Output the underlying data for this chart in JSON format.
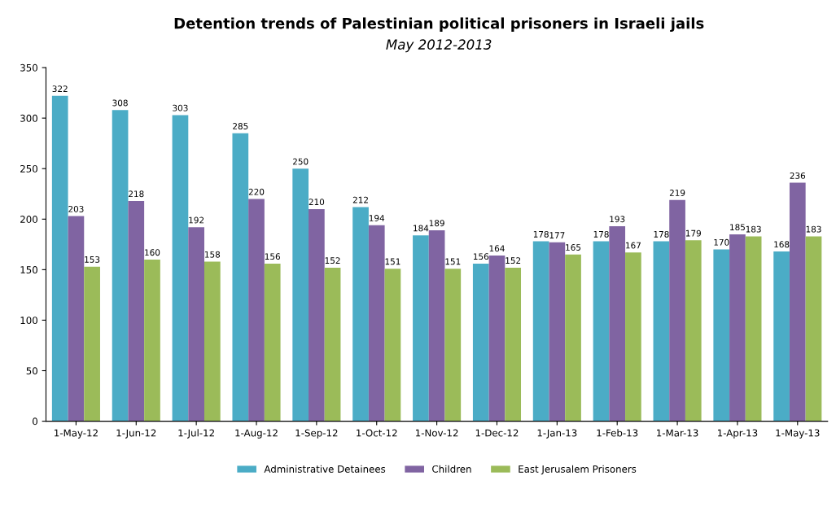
{
  "chart_data": {
    "type": "bar",
    "title": "Detention trends of Palestinian political prisoners in Israeli jails",
    "subtitle": "May 2012-2013",
    "categories": [
      "1-May-12",
      "1-Jun-12",
      "1-Jul-12",
      "1-Aug-12",
      "1-Sep-12",
      "1-Oct-12",
      "1-Nov-12",
      "1-Dec-12",
      "1-Jan-13",
      "1-Feb-13",
      "1-Mar-13",
      "1-Apr-13",
      "1-May-13"
    ],
    "series": [
      {
        "name": "Administrative Detainees",
        "color": "#4bacc6",
        "values": [
          322,
          308,
          303,
          285,
          250,
          212,
          184,
          156,
          178,
          178,
          178,
          170,
          168
        ]
      },
      {
        "name": "Children",
        "color": "#8064a2",
        "values": [
          203,
          218,
          192,
          220,
          210,
          194,
          189,
          164,
          177,
          193,
          219,
          185,
          236
        ]
      },
      {
        "name": "East Jerusalem Prisoners",
        "color": "#9bbb59",
        "values": [
          153,
          160,
          158,
          156,
          152,
          151,
          151,
          152,
          165,
          167,
          179,
          183,
          183
        ]
      }
    ],
    "ylim": [
      0,
      350
    ],
    "yticks": [
      0,
      50,
      100,
      150,
      200,
      250,
      300,
      350
    ],
    "data_labels": true,
    "legend": "bottom",
    "grid": false
  }
}
